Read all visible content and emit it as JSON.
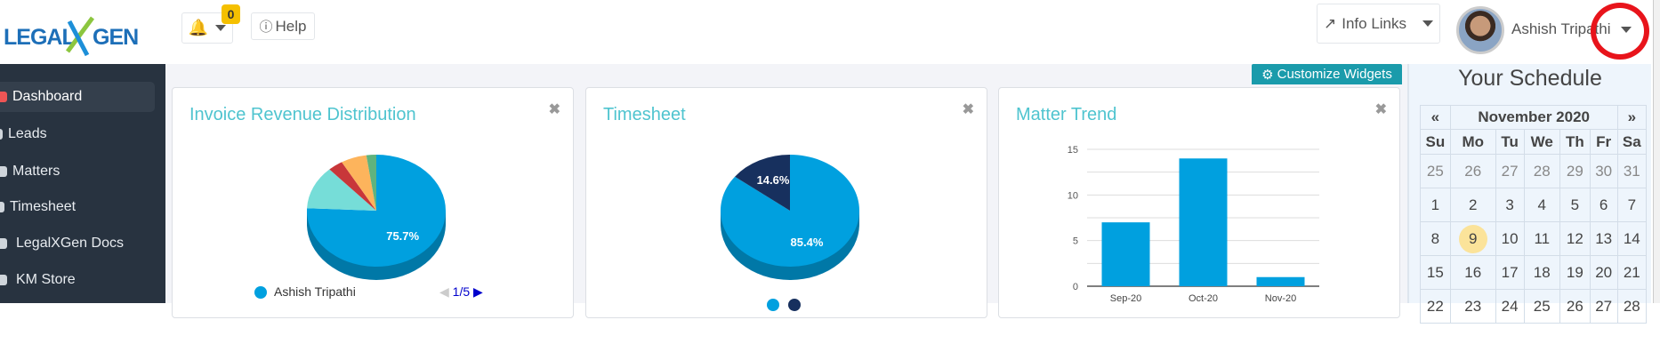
{
  "header": {
    "logo_text": "LEGALXGEN",
    "notifications": {
      "icon": "bell-icon",
      "count": "0"
    },
    "help_label": "Help",
    "info_links_label": "Info Links",
    "user_name": "Ashish Tripathi"
  },
  "sidebar": {
    "items": [
      {
        "label": "Dashboard",
        "icon": "dashboard-icon",
        "active": true
      },
      {
        "label": "Leads",
        "icon": "leads-icon"
      },
      {
        "label": "Matters",
        "icon": "matters-icon"
      },
      {
        "label": "Timesheet",
        "icon": "clock-icon"
      },
      {
        "label": "LegalXGen Docs",
        "icon": "docs-icon"
      },
      {
        "label": "KM Store",
        "icon": "store-icon"
      }
    ]
  },
  "main": {
    "customize_label": "Customize Widgets",
    "widgets": [
      {
        "title": "Invoice Revenue Distribution",
        "legend_label": "Ashish Tripathi",
        "pager": "1/5"
      },
      {
        "title": "Timesheet"
      },
      {
        "title": "Matter Trend"
      }
    ]
  },
  "schedule": {
    "title": "Your Schedule",
    "prev": "«",
    "next": "»",
    "month": "November 2020",
    "dow": [
      "Su",
      "Mo",
      "Tu",
      "We",
      "Th",
      "Fr",
      "Sa"
    ],
    "weeks": [
      [
        "25",
        "26",
        "27",
        "28",
        "29",
        "30",
        "31"
      ],
      [
        "1",
        "2",
        "3",
        "4",
        "5",
        "6",
        "7"
      ],
      [
        "8",
        "9",
        "10",
        "11",
        "12",
        "13",
        "14"
      ],
      [
        "15",
        "16",
        "17",
        "18",
        "19",
        "20",
        "21"
      ],
      [
        "22",
        "23",
        "24",
        "25",
        "26",
        "27",
        "28"
      ]
    ],
    "today": "9"
  },
  "chart_data": [
    {
      "type": "pie",
      "title": "Invoice Revenue Distribution",
      "values": [
        75.7,
        12.5,
        3.5,
        6.0,
        2.3
      ],
      "labels_shown": [
        "75.7%"
      ],
      "colors": [
        "#00a0df",
        "#76ddd8",
        "#c8373a",
        "#fdb45c",
        "#5fb37e"
      ]
    },
    {
      "type": "pie",
      "title": "Timesheet",
      "values": [
        85.4,
        14.6
      ],
      "labels_shown": [
        "85.4%",
        "14.6%"
      ],
      "colors": [
        "#00a0df",
        "#17305e"
      ]
    },
    {
      "type": "bar",
      "title": "Matter Trend",
      "categories": [
        "Sep-20",
        "Oct-20",
        "Nov-20"
      ],
      "values": [
        7,
        14,
        1
      ],
      "ylim": [
        0,
        15
      ],
      "yticks": [
        "0",
        "5",
        "10",
        "15"
      ],
      "grid": true,
      "color": "#00a0df"
    }
  ]
}
